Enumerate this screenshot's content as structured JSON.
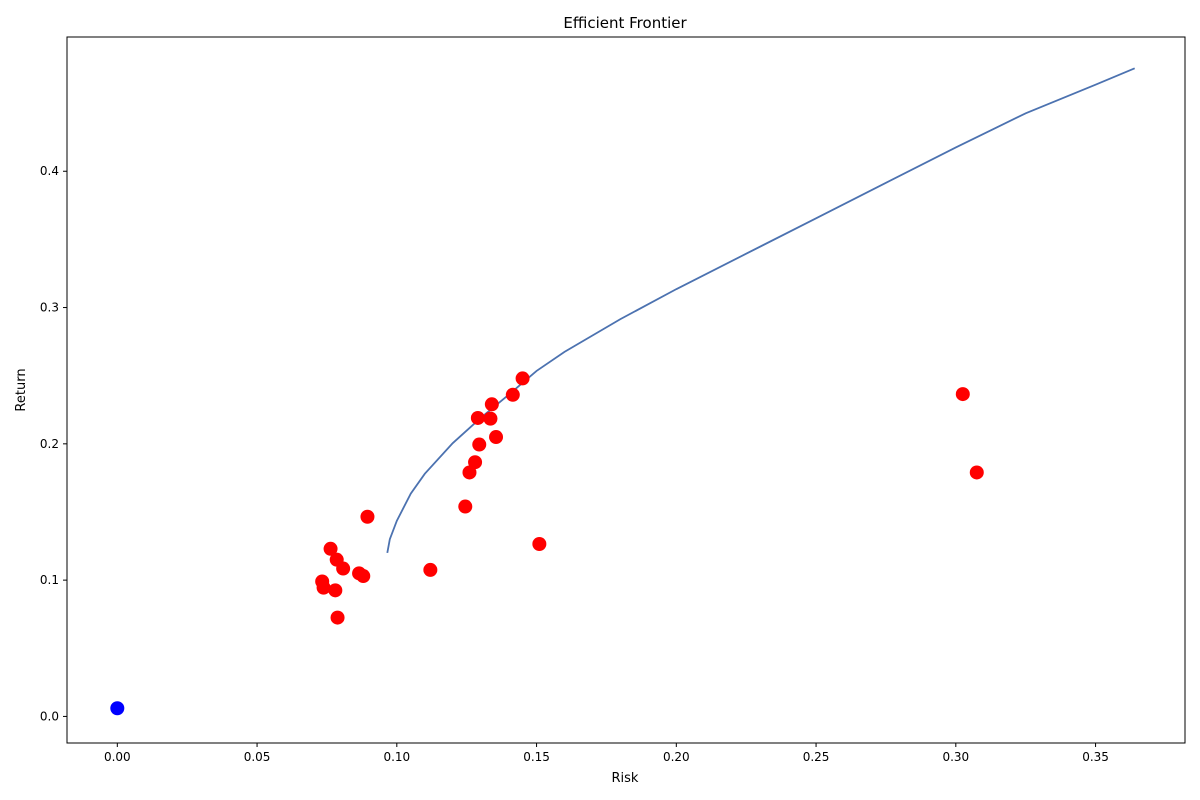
{
  "chart_data": {
    "type": "scatter",
    "title": "Efficient Frontier",
    "xlabel": "Risk",
    "ylabel": "Return",
    "xlim": [
      -0.018,
      0.382
    ],
    "ylim": [
      -0.0195,
      0.4985
    ],
    "xticks": [
      0.0,
      0.05,
      0.1,
      0.15,
      0.2,
      0.25,
      0.3,
      0.35
    ],
    "xtick_labels": [
      "0.00",
      "0.05",
      "0.10",
      "0.15",
      "0.20",
      "0.25",
      "0.30",
      "0.35"
    ],
    "yticks": [
      0.0,
      0.1,
      0.2,
      0.3,
      0.4
    ],
    "ytick_labels": [
      "0.0",
      "0.1",
      "0.2",
      "0.3",
      "0.4"
    ],
    "grid": false,
    "colors": {
      "frontier": "#4c72b0",
      "assets": "#ff0000",
      "risk_free": "#0000ff"
    },
    "frontier": [
      {
        "x": 0.0966,
        "y": 0.12
      },
      {
        "x": 0.0975,
        "y": 0.13
      },
      {
        "x": 0.1,
        "y": 0.1435
      },
      {
        "x": 0.105,
        "y": 0.1635
      },
      {
        "x": 0.11,
        "y": 0.178
      },
      {
        "x": 0.12,
        "y": 0.2005
      },
      {
        "x": 0.13,
        "y": 0.219
      },
      {
        "x": 0.14,
        "y": 0.236
      },
      {
        "x": 0.15,
        "y": 0.2535
      },
      {
        "x": 0.16,
        "y": 0.2675
      },
      {
        "x": 0.18,
        "y": 0.2915
      },
      {
        "x": 0.2,
        "y": 0.3135
      },
      {
        "x": 0.225,
        "y": 0.3395
      },
      {
        "x": 0.25,
        "y": 0.3655
      },
      {
        "x": 0.275,
        "y": 0.3915
      },
      {
        "x": 0.3,
        "y": 0.4175
      },
      {
        "x": 0.325,
        "y": 0.4425
      },
      {
        "x": 0.35,
        "y": 0.4635
      },
      {
        "x": 0.364,
        "y": 0.4755
      }
    ],
    "assets": [
      {
        "x": 0.0895,
        "y": 0.1465
      },
      {
        "x": 0.0763,
        "y": 0.123
      },
      {
        "x": 0.0785,
        "y": 0.115
      },
      {
        "x": 0.0808,
        "y": 0.1085
      },
      {
        "x": 0.0865,
        "y": 0.105
      },
      {
        "x": 0.088,
        "y": 0.103
      },
      {
        "x": 0.0733,
        "y": 0.099
      },
      {
        "x": 0.0738,
        "y": 0.0945
      },
      {
        "x": 0.078,
        "y": 0.0925
      },
      {
        "x": 0.0788,
        "y": 0.0725
      },
      {
        "x": 0.112,
        "y": 0.1075
      },
      {
        "x": 0.1245,
        "y": 0.154
      },
      {
        "x": 0.126,
        "y": 0.179
      },
      {
        "x": 0.128,
        "y": 0.1865
      },
      {
        "x": 0.1295,
        "y": 0.1995
      },
      {
        "x": 0.129,
        "y": 0.219
      },
      {
        "x": 0.1335,
        "y": 0.2185
      },
      {
        "x": 0.1355,
        "y": 0.205
      },
      {
        "x": 0.134,
        "y": 0.229
      },
      {
        "x": 0.1415,
        "y": 0.236
      },
      {
        "x": 0.145,
        "y": 0.248
      },
      {
        "x": 0.151,
        "y": 0.1265
      },
      {
        "x": 0.3025,
        "y": 0.2365
      },
      {
        "x": 0.3075,
        "y": 0.179
      }
    ],
    "risk_free": [
      {
        "x": 0.0,
        "y": 0.006
      }
    ]
  }
}
